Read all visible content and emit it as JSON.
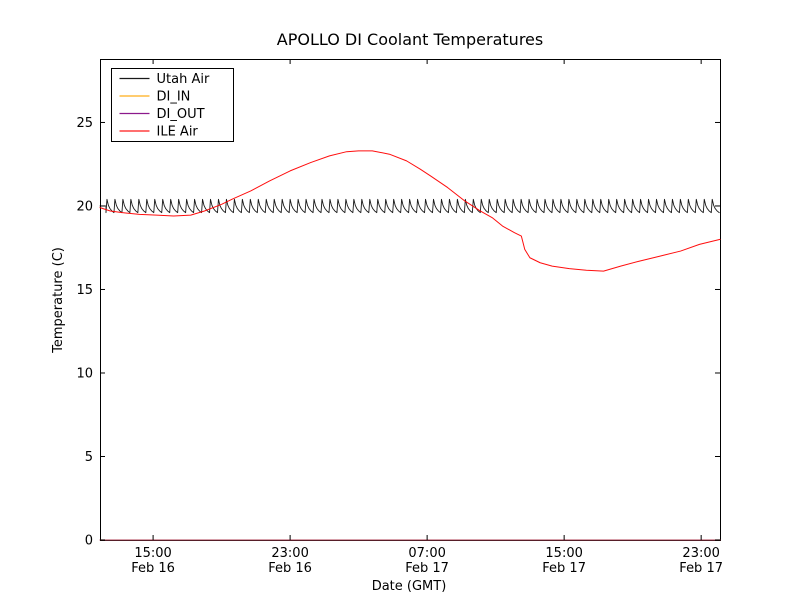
{
  "chart_data": {
    "type": "line",
    "title": "APOLLO DI Coolant Temperatures",
    "xlabel": "Date (GMT)",
    "ylabel": "Temperature (C)",
    "x_axis": {
      "unit": "hours_since_Feb16_0000_GMT",
      "xlim": [
        11.9,
        48.1
      ],
      "ticks": [
        {
          "t": 15,
          "time": "15:00",
          "date": "Feb 16"
        },
        {
          "t": 23,
          "time": "23:00",
          "date": "Feb 16"
        },
        {
          "t": 31,
          "time": "07:00",
          "date": "Feb 17"
        },
        {
          "t": 39,
          "time": "15:00",
          "date": "Feb 17"
        },
        {
          "t": 47,
          "time": "23:00",
          "date": "Feb 17"
        }
      ]
    },
    "y_axis": {
      "ylim": [
        0,
        28.8
      ],
      "ticks": [
        0,
        5,
        10,
        15,
        20,
        25
      ]
    },
    "legend": {
      "position": "upper left",
      "entries": [
        "Utah Air",
        "DI_IN",
        "DI_OUT",
        "ILE Air"
      ]
    },
    "series": [
      {
        "name": "Utah Air",
        "color": "#000000",
        "kind": "sawtooth",
        "sawtooth": {
          "t_start": 11.9,
          "t_end": 48.1,
          "lead_in_hours": 0.35,
          "lead_in_value": 20.0,
          "period_hours": 0.465,
          "min": 19.6,
          "max": 20.4
        }
      },
      {
        "name": "DI_IN",
        "color": "#ffa500",
        "kind": "flat",
        "value": 0.0
      },
      {
        "name": "DI_OUT",
        "color": "#800080",
        "kind": "flat",
        "value": 0.0
      },
      {
        "name": "ILE Air",
        "color": "#ff0000",
        "kind": "points",
        "points": [
          [
            11.9,
            19.9
          ],
          [
            12.5,
            19.7
          ],
          [
            13.2,
            19.6
          ],
          [
            14.2,
            19.5
          ],
          [
            15.2,
            19.45
          ],
          [
            16.2,
            19.4
          ],
          [
            17.2,
            19.45
          ],
          [
            18.0,
            19.7
          ],
          [
            19.0,
            20.1
          ],
          [
            19.6,
            20.4
          ],
          [
            20.7,
            20.9
          ],
          [
            21.8,
            21.5
          ],
          [
            23.0,
            22.1
          ],
          [
            24.2,
            22.6
          ],
          [
            25.3,
            23.0
          ],
          [
            26.3,
            23.25
          ],
          [
            27.0,
            23.3
          ],
          [
            27.8,
            23.3
          ],
          [
            28.8,
            23.1
          ],
          [
            29.8,
            22.7
          ],
          [
            30.6,
            22.2
          ],
          [
            31.2,
            21.8
          ],
          [
            32.2,
            21.1
          ],
          [
            33.2,
            20.3
          ],
          [
            34.1,
            19.7
          ],
          [
            34.8,
            19.3
          ],
          [
            35.4,
            18.8
          ],
          [
            36.1,
            18.4
          ],
          [
            36.5,
            18.2
          ],
          [
            36.7,
            17.4
          ],
          [
            37.0,
            16.9
          ],
          [
            37.6,
            16.6
          ],
          [
            38.3,
            16.4
          ],
          [
            39.3,
            16.25
          ],
          [
            40.3,
            16.15
          ],
          [
            41.3,
            16.1
          ],
          [
            42.3,
            16.4
          ],
          [
            43.4,
            16.7
          ],
          [
            44.6,
            17.0
          ],
          [
            45.8,
            17.3
          ],
          [
            46.9,
            17.7
          ],
          [
            48.1,
            18.0
          ]
        ]
      }
    ]
  }
}
